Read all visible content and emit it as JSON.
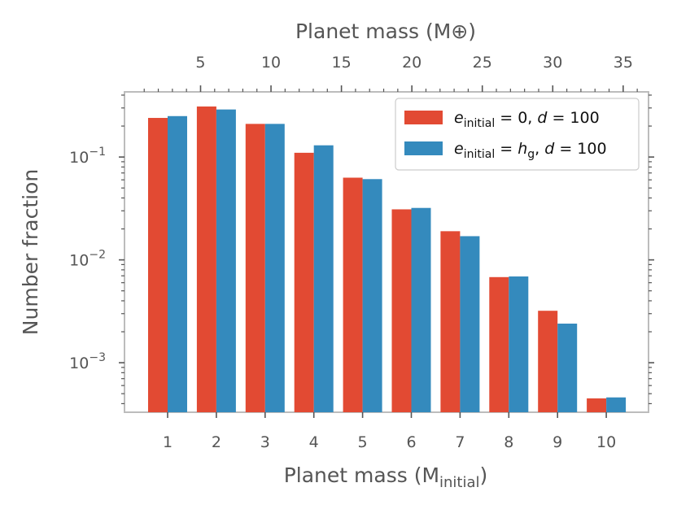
{
  "chart_data": {
    "type": "bar",
    "scale": "log",
    "categories": [
      "1",
      "2",
      "3",
      "4",
      "5",
      "6",
      "7",
      "8",
      "9",
      "10"
    ],
    "series": [
      {
        "name": "e_initial = 0, d = 100",
        "color": "#E24A33",
        "values": [
          0.24,
          0.31,
          0.21,
          0.11,
          0.063,
          0.031,
          0.019,
          0.0068,
          0.0032,
          0.00045
        ]
      },
      {
        "name": "e_initial = h_g, d = 100",
        "color": "#348ABD",
        "values": [
          0.25,
          0.29,
          0.21,
          0.13,
          0.061,
          0.032,
          0.017,
          0.0069,
          0.0024,
          0.00046
        ]
      }
    ],
    "legend": {
      "entries": [
        {
          "var": "e",
          "sub": "initial",
          "rest": " = 0, ",
          "var2": "d",
          "rest2": " = 100"
        },
        {
          "var": "e",
          "sub": "initial",
          "rest": " = ",
          "var_mid": "h",
          "sub_mid": "g",
          "rest_mid": ", ",
          "var2": "d",
          "rest2": " = 100"
        }
      ],
      "placement": "top-right"
    },
    "xlabel": {
      "main": "Planet mass (M",
      "sub": "initial",
      "close": ")"
    },
    "ylabel": "Number fraction",
    "ylim": [
      0.00033,
      0.43
    ],
    "yticks": [
      {
        "value": 0.001,
        "base": "10",
        "exp": "−3"
      },
      {
        "value": 0.01,
        "base": "10",
        "exp": "−2"
      },
      {
        "value": 0.1,
        "base": "10",
        "exp": "−1"
      }
    ],
    "top_axis": {
      "label": "Planet mass (M⊕)",
      "ticks": [
        5,
        10,
        15,
        20,
        25,
        30,
        35
      ],
      "labels": [
        "5",
        "10",
        "15",
        "20",
        "25",
        "30",
        "35"
      ],
      "range": [
        -0.4,
        36.8
      ]
    }
  }
}
